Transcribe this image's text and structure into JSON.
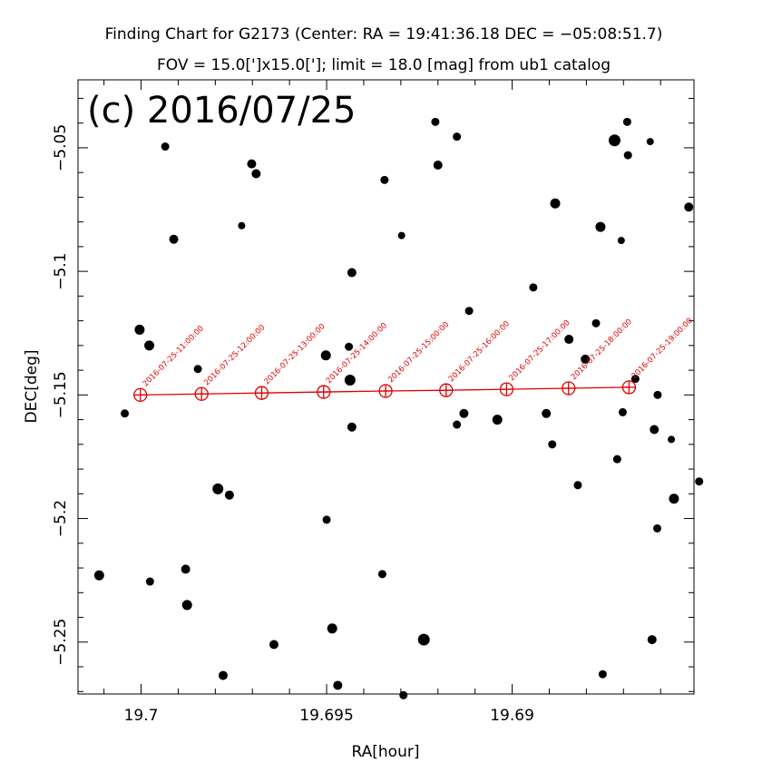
{
  "chart_data": {
    "type": "scatter",
    "title": "Finding Chart for G2173 (Center: RA = 19:41:36.18 DEC = −05:08:51.7)",
    "subtitle": "FOV = 15.0[']x15.0[']; limit = 18.0 [mag] from ub1 catalog",
    "panel_label": "(c) 2016/07/25",
    "xlabel": "RA[hour]",
    "ylabel": "DEC[deg]",
    "xlim": [
      19.7017,
      19.6851
    ],
    "ylim": [
      -5.271,
      -5.0225
    ],
    "x_reversed": true,
    "grid": false,
    "x_ticks": [
      {
        "value": 19.7,
        "label": "19.7"
      },
      {
        "value": 19.695,
        "label": "19.695"
      },
      {
        "value": 19.69,
        "label": "19.69"
      }
    ],
    "y_ticks": [
      {
        "value": -5.05,
        "label": "−5.05"
      },
      {
        "value": -5.1,
        "label": "−5.1"
      },
      {
        "value": -5.15,
        "label": "−5.15"
      },
      {
        "value": -5.2,
        "label": "−5.2"
      },
      {
        "value": -5.25,
        "label": "−5.25"
      }
    ],
    "track_color": "#e00000",
    "star_color": "#000000",
    "stars": [
      {
        "ra": 19.70113,
        "dec": -5.223,
        "size": 5.5
      },
      {
        "ra": 19.70044,
        "dec": -5.1575,
        "size": 4.5
      },
      {
        "ra": 19.70004,
        "dec": -5.1236,
        "size": 5.5
      },
      {
        "ra": 19.69978,
        "dec": -5.13,
        "size": 5.5
      },
      {
        "ra": 19.69976,
        "dec": -5.2255,
        "size": 4.5
      },
      {
        "ra": 19.69935,
        "dec": -5.0495,
        "size": 4.5
      },
      {
        "ra": 19.69912,
        "dec": -5.087,
        "size": 5
      },
      {
        "ra": 19.6988,
        "dec": -5.2205,
        "size": 5
      },
      {
        "ra": 19.69876,
        "dec": -5.235,
        "size": 5.5
      },
      {
        "ra": 19.69847,
        "dec": -5.1395,
        "size": 4.5
      },
      {
        "ra": 19.69793,
        "dec": -5.188,
        "size": 6
      },
      {
        "ra": 19.69779,
        "dec": -5.2635,
        "size": 5
      },
      {
        "ra": 19.69762,
        "dec": -5.1905,
        "size": 5
      },
      {
        "ra": 19.69729,
        "dec": -5.0815,
        "size": 4
      },
      {
        "ra": 19.69702,
        "dec": -5.0565,
        "size": 5
      },
      {
        "ra": 19.6969,
        "dec": -5.0605,
        "size": 5
      },
      {
        "ra": 19.69642,
        "dec": -5.251,
        "size": 5
      },
      {
        "ra": 19.69502,
        "dec": -5.134,
        "size": 5.5
      },
      {
        "ra": 19.695,
        "dec": -5.2005,
        "size": 4.5
      },
      {
        "ra": 19.69485,
        "dec": -5.2445,
        "size": 5.5
      },
      {
        "ra": 19.6947,
        "dec": -5.2675,
        "size": 5
      },
      {
        "ra": 19.6944,
        "dec": -5.1305,
        "size": 4.5
      },
      {
        "ra": 19.69437,
        "dec": -5.144,
        "size": 6
      },
      {
        "ra": 19.69432,
        "dec": -5.163,
        "size": 5
      },
      {
        "ra": 19.69432,
        "dec": -5.1005,
        "size": 5
      },
      {
        "ra": 19.6935,
        "dec": -5.2225,
        "size": 4.5
      },
      {
        "ra": 19.69344,
        "dec": -5.063,
        "size": 4.5
      },
      {
        "ra": 19.69298,
        "dec": -5.0855,
        "size": 4
      },
      {
        "ra": 19.69293,
        "dec": -5.2715,
        "size": 4.5
      },
      {
        "ra": 19.69238,
        "dec": -5.249,
        "size": 6.5
      },
      {
        "ra": 19.69207,
        "dec": -5.0395,
        "size": 4.5
      },
      {
        "ra": 19.692,
        "dec": -5.057,
        "size": 5
      },
      {
        "ra": 19.69149,
        "dec": -5.0455,
        "size": 4.5
      },
      {
        "ra": 19.69149,
        "dec": -5.162,
        "size": 4.5
      },
      {
        "ra": 19.6913,
        "dec": -5.1575,
        "size": 5
      },
      {
        "ra": 19.69116,
        "dec": -5.116,
        "size": 4.5
      },
      {
        "ra": 19.6904,
        "dec": -5.16,
        "size": 5.5
      },
      {
        "ra": 19.68943,
        "dec": -5.1065,
        "size": 4.5
      },
      {
        "ra": 19.68908,
        "dec": -5.1575,
        "size": 5
      },
      {
        "ra": 19.68892,
        "dec": -5.17,
        "size": 4.5
      },
      {
        "ra": 19.68884,
        "dec": -5.0725,
        "size": 5.5
      },
      {
        "ra": 19.68847,
        "dec": -5.1275,
        "size": 5
      },
      {
        "ra": 19.68823,
        "dec": -5.1865,
        "size": 4.5
      },
      {
        "ra": 19.68803,
        "dec": -5.1355,
        "size": 5
      },
      {
        "ra": 19.68774,
        "dec": -5.121,
        "size": 4.5
      },
      {
        "ra": 19.68762,
        "dec": -5.082,
        "size": 5.5
      },
      {
        "ra": 19.68756,
        "dec": -5.263,
        "size": 4.5
      },
      {
        "ra": 19.68724,
        "dec": -5.047,
        "size": 6.5
      },
      {
        "ra": 19.68717,
        "dec": -5.176,
        "size": 4.5
      },
      {
        "ra": 19.68706,
        "dec": -5.0875,
        "size": 4
      },
      {
        "ra": 19.68702,
        "dec": -5.157,
        "size": 4.5
      },
      {
        "ra": 19.6869,
        "dec": -5.0395,
        "size": 4.5
      },
      {
        "ra": 19.68688,
        "dec": -5.053,
        "size": 4.5
      },
      {
        "ra": 19.68668,
        "dec": -5.1435,
        "size": 4.5
      },
      {
        "ra": 19.68628,
        "dec": -5.0475,
        "size": 4
      },
      {
        "ra": 19.68623,
        "dec": -5.249,
        "size": 5
      },
      {
        "ra": 19.68617,
        "dec": -5.164,
        "size": 5
      },
      {
        "ra": 19.68609,
        "dec": -5.204,
        "size": 4.5
      },
      {
        "ra": 19.68608,
        "dec": -5.15,
        "size": 4.5
      },
      {
        "ra": 19.68571,
        "dec": -5.168,
        "size": 4
      },
      {
        "ra": 19.68564,
        "dec": -5.192,
        "size": 5.5
      },
      {
        "ra": 19.68524,
        "dec": -5.074,
        "size": 5
      },
      {
        "ra": 19.68496,
        "dec": -5.185,
        "size": 4.5
      }
    ],
    "track": [
      {
        "ra": 19.70002,
        "dec": -5.15,
        "label": "2016-07-25-11:00:00"
      },
      {
        "ra": 19.69837,
        "dec": -5.1496,
        "label": "2016-07-25-12:00:00"
      },
      {
        "ra": 19.69675,
        "dec": -5.1492,
        "label": "2016-07-25-13:00:00"
      },
      {
        "ra": 19.69508,
        "dec": -5.1488,
        "label": "2016-07-25-14:00:00"
      },
      {
        "ra": 19.69341,
        "dec": -5.1484,
        "label": "2016-07-25-15:00:00"
      },
      {
        "ra": 19.69178,
        "dec": -5.1481,
        "label": "2016-07-25-16:00:00"
      },
      {
        "ra": 19.69015,
        "dec": -5.1477,
        "label": "2016-07-25-17:00:00"
      },
      {
        "ra": 19.68848,
        "dec": -5.1473,
        "label": "2016-07-25-18:00:00"
      },
      {
        "ra": 19.68685,
        "dec": -5.1469,
        "label": "2016-07-25-19:00:00"
      }
    ]
  }
}
